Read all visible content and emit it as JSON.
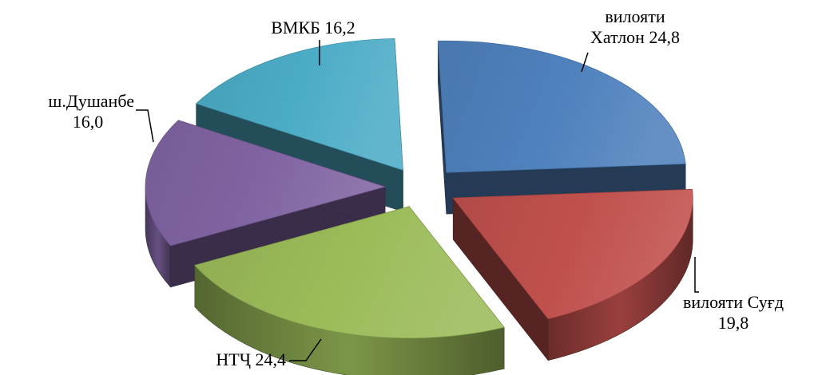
{
  "chart_data": {
    "type": "pie",
    "style": "3d-exploded",
    "slices": [
      {
        "key": "khatlon",
        "label_lines": [
          "вилояти",
          "Хатлон  24,8"
        ],
        "value": 24.8,
        "color": "#4f81bd"
      },
      {
        "key": "sughd",
        "label_lines": [
          "вилояти Суғд",
          "19,8"
        ],
        "value": 19.8,
        "color": "#c0504d"
      },
      {
        "key": "ntch",
        "label_lines": [
          "НТҶ 24,4"
        ],
        "value": 24.4,
        "color": "#9bbb59"
      },
      {
        "key": "dushanbe",
        "label_lines": [
          "ш.Душанбе",
          "16,0"
        ],
        "value": 16.0,
        "color": "#8064a2"
      },
      {
        "key": "vmkb",
        "label_lines": [
          "ВМКБ 16,2"
        ],
        "value": 16.2,
        "color": "#4bacc6"
      }
    ]
  }
}
